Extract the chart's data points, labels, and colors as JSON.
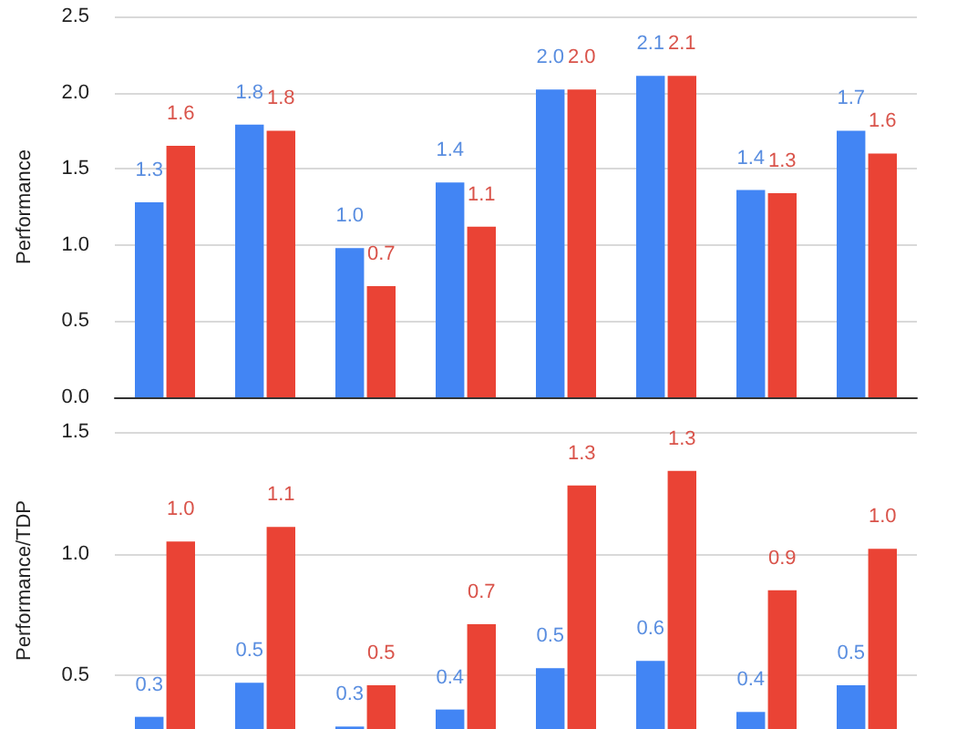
{
  "chart_data": [
    {
      "type": "bar",
      "ylabel": "Performance",
      "categories": [
        null,
        null,
        null,
        null,
        null,
        null,
        null,
        null
      ],
      "ylim": [
        0,
        2.5
      ],
      "yticks": [
        {
          "value": 0,
          "label": "0.0"
        },
        0.5,
        {
          "value": 1,
          "label": "1.0"
        },
        1.5,
        {
          "value": 2,
          "label": "2.0"
        },
        2.5
      ],
      "grid": "y",
      "tick_labels": "y",
      "series": [
        {
          "color": "#4285f4",
          "values": [
            1.28,
            1.79,
            0.98,
            1.41,
            2.02,
            2.11,
            1.36,
            1.75
          ],
          "value_labels": [
            "1.3",
            "1.8",
            "1.0",
            "1.4",
            "2.0",
            "2.1",
            "1.4",
            "1.7"
          ]
        },
        {
          "color": "#ea4335",
          "values": [
            1.65,
            1.75,
            0.73,
            1.12,
            2.02,
            2.11,
            1.34,
            1.6
          ],
          "value_labels": [
            "1.6",
            "1.8",
            "0.7",
            "1.1",
            "2.0",
            "2.1",
            "1.3",
            "1.6"
          ]
        }
      ]
    },
    {
      "type": "bar",
      "ylabel": "Performance/TDP",
      "categories": [
        null,
        null,
        null,
        null,
        null,
        null,
        null,
        null
      ],
      "ylim": [
        0.28,
        1.5
      ],
      "yticks": [
        0.5,
        {
          "value": 1,
          "label": "1.0"
        },
        1.5
      ],
      "grid": "y",
      "tick_labels": "y",
      "series": [
        {
          "color": "#4285f4",
          "values": [
            0.33,
            0.47,
            0.29,
            0.36,
            0.53,
            0.56,
            0.35,
            0.46
          ],
          "value_labels": [
            "0.3",
            "0.5",
            "0.3",
            "0.4",
            "0.5",
            "0.6",
            "0.4",
            "0.5"
          ]
        },
        {
          "color": "#ea4335",
          "values": [
            1.05,
            1.11,
            0.46,
            0.71,
            1.28,
            1.34,
            0.85,
            1.02
          ],
          "value_labels": [
            "1.0",
            "1.1",
            "0.5",
            "0.7",
            "1.3",
            "1.3",
            "0.9",
            "1.0"
          ]
        }
      ]
    }
  ]
}
